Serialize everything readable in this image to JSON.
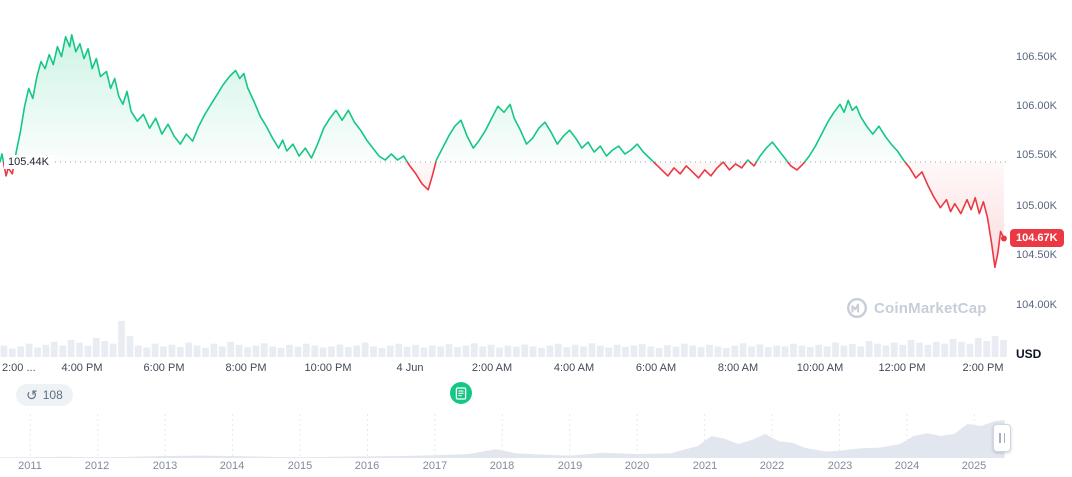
{
  "price_chart": {
    "open_label": "105.44K",
    "last_label": "104.67K"
  },
  "price_axis": {
    "labels": [
      "106.50K",
      "106.00K",
      "105.50K",
      "105.00K",
      "104.50K",
      "104.00K"
    ],
    "currency": "USD"
  },
  "time_axis": {
    "labels": [
      "2:00 ...",
      "4:00 PM",
      "6:00 PM",
      "8:00 PM",
      "10:00 PM",
      "4 Jun",
      "2:00 AM",
      "4:00 AM",
      "6:00 AM",
      "8:00 AM",
      "10:00 AM",
      "12:00 PM",
      "2:00 PM"
    ]
  },
  "toolbar": {
    "annotations_count": "108",
    "history_glyph": "↺"
  },
  "watermark": {
    "text": "CoinMarketCap"
  },
  "timeline": {
    "years": [
      "2011",
      "2012",
      "2013",
      "2014",
      "2015",
      "2016",
      "2017",
      "2018",
      "2019",
      "2020",
      "2021",
      "2022",
      "2023",
      "2024",
      "2025"
    ]
  },
  "chart_data": [
    {
      "type": "area",
      "title": "",
      "x_unit": "hours since 2:00 PM Jun 3",
      "x_range": [
        0,
        24.6
      ],
      "y_range_visible": [
        103.93,
        107.07
      ],
      "baseline_open": 105.44,
      "last_price": 104.67,
      "y_ticks": [
        "106.50K",
        "106.00K",
        "105.50K",
        "105.00K",
        "104.50K",
        "104.00K"
      ],
      "x_ticks": [
        "2:00 ...",
        "4:00 PM",
        "6:00 PM",
        "8:00 PM",
        "10:00 PM",
        "4 Jun",
        "2:00 AM",
        "4:00 AM",
        "6:00 AM",
        "8:00 AM",
        "10:00 AM",
        "12:00 PM",
        "2:00 PM"
      ],
      "colors": {
        "up": "#16c784",
        "down": "#ea3943",
        "baseline": "#9aa4b5",
        "volume": "#e9ecf2"
      },
      "points": [
        [
          0,
          105.44
        ],
        [
          0.05,
          105.52
        ],
        [
          0.1,
          105.4
        ],
        [
          0.15,
          105.3
        ],
        [
          0.2,
          105.38
        ],
        [
          0.3,
          105.32
        ],
        [
          0.4,
          105.55
        ],
        [
          0.5,
          105.75
        ],
        [
          0.6,
          106.0
        ],
        [
          0.7,
          106.18
        ],
        [
          0.8,
          106.08
        ],
        [
          0.9,
          106.3
        ],
        [
          1.0,
          106.45
        ],
        [
          1.1,
          106.38
        ],
        [
          1.2,
          106.52
        ],
        [
          1.3,
          106.42
        ],
        [
          1.4,
          106.6
        ],
        [
          1.5,
          106.5
        ],
        [
          1.6,
          106.7
        ],
        [
          1.7,
          106.6
        ],
        [
          1.75,
          106.72
        ],
        [
          1.85,
          106.55
        ],
        [
          1.95,
          106.63
        ],
        [
          2.05,
          106.48
        ],
        [
          2.15,
          106.58
        ],
        [
          2.25,
          106.38
        ],
        [
          2.35,
          106.48
        ],
        [
          2.45,
          106.3
        ],
        [
          2.6,
          106.35
        ],
        [
          2.7,
          106.18
        ],
        [
          2.8,
          106.28
        ],
        [
          2.9,
          106.1
        ],
        [
          3.0,
          106.02
        ],
        [
          3.1,
          106.15
        ],
        [
          3.2,
          105.95
        ],
        [
          3.35,
          105.85
        ],
        [
          3.5,
          105.92
        ],
        [
          3.65,
          105.78
        ],
        [
          3.8,
          105.88
        ],
        [
          3.95,
          105.72
        ],
        [
          4.1,
          105.82
        ],
        [
          4.25,
          105.7
        ],
        [
          4.4,
          105.62
        ],
        [
          4.55,
          105.72
        ],
        [
          4.7,
          105.65
        ],
        [
          4.85,
          105.8
        ],
        [
          5.0,
          105.92
        ],
        [
          5.15,
          106.02
        ],
        [
          5.3,
          106.12
        ],
        [
          5.45,
          106.22
        ],
        [
          5.6,
          106.3
        ],
        [
          5.75,
          106.36
        ],
        [
          5.85,
          106.28
        ],
        [
          5.95,
          106.33
        ],
        [
          6.05,
          106.18
        ],
        [
          6.2,
          106.05
        ],
        [
          6.35,
          105.9
        ],
        [
          6.5,
          105.8
        ],
        [
          6.65,
          105.68
        ],
        [
          6.8,
          105.58
        ],
        [
          6.9,
          105.66
        ],
        [
          7.0,
          105.55
        ],
        [
          7.15,
          105.62
        ],
        [
          7.3,
          105.5
        ],
        [
          7.45,
          105.58
        ],
        [
          7.6,
          105.48
        ],
        [
          7.75,
          105.62
        ],
        [
          7.9,
          105.78
        ],
        [
          8.05,
          105.88
        ],
        [
          8.2,
          105.96
        ],
        [
          8.35,
          105.86
        ],
        [
          8.5,
          105.96
        ],
        [
          8.65,
          105.84
        ],
        [
          8.8,
          105.76
        ],
        [
          8.95,
          105.66
        ],
        [
          9.1,
          105.58
        ],
        [
          9.25,
          105.5
        ],
        [
          9.4,
          105.46
        ],
        [
          9.55,
          105.52
        ],
        [
          9.7,
          105.46
        ],
        [
          9.85,
          105.5
        ],
        [
          10.0,
          105.4
        ],
        [
          10.15,
          105.32
        ],
        [
          10.3,
          105.22
        ],
        [
          10.45,
          105.16
        ],
        [
          10.55,
          105.3
        ],
        [
          10.65,
          105.46
        ],
        [
          10.8,
          105.58
        ],
        [
          10.95,
          105.7
        ],
        [
          11.1,
          105.8
        ],
        [
          11.25,
          105.86
        ],
        [
          11.4,
          105.7
        ],
        [
          11.55,
          105.58
        ],
        [
          11.7,
          105.66
        ],
        [
          11.85,
          105.76
        ],
        [
          12.0,
          105.88
        ],
        [
          12.15,
          106.0
        ],
        [
          12.3,
          105.94
        ],
        [
          12.45,
          106.02
        ],
        [
          12.55,
          105.88
        ],
        [
          12.7,
          105.76
        ],
        [
          12.85,
          105.62
        ],
        [
          13.0,
          105.68
        ],
        [
          13.15,
          105.78
        ],
        [
          13.3,
          105.84
        ],
        [
          13.45,
          105.74
        ],
        [
          13.6,
          105.62
        ],
        [
          13.75,
          105.7
        ],
        [
          13.9,
          105.76
        ],
        [
          14.05,
          105.68
        ],
        [
          14.2,
          105.58
        ],
        [
          14.35,
          105.64
        ],
        [
          14.5,
          105.54
        ],
        [
          14.65,
          105.6
        ],
        [
          14.8,
          105.5
        ],
        [
          14.95,
          105.56
        ],
        [
          15.1,
          105.6
        ],
        [
          15.25,
          105.52
        ],
        [
          15.4,
          105.56
        ],
        [
          15.55,
          105.62
        ],
        [
          15.7,
          105.54
        ],
        [
          15.85,
          105.48
        ],
        [
          16.0,
          105.42
        ],
        [
          16.15,
          105.36
        ],
        [
          16.3,
          105.3
        ],
        [
          16.45,
          105.38
        ],
        [
          16.6,
          105.32
        ],
        [
          16.75,
          105.4
        ],
        [
          16.9,
          105.34
        ],
        [
          17.05,
          105.28
        ],
        [
          17.2,
          105.36
        ],
        [
          17.35,
          105.3
        ],
        [
          17.5,
          105.38
        ],
        [
          17.65,
          105.44
        ],
        [
          17.8,
          105.36
        ],
        [
          17.95,
          105.42
        ],
        [
          18.1,
          105.38
        ],
        [
          18.25,
          105.46
        ],
        [
          18.4,
          105.4
        ],
        [
          18.55,
          105.5
        ],
        [
          18.7,
          105.58
        ],
        [
          18.85,
          105.64
        ],
        [
          19.0,
          105.56
        ],
        [
          19.15,
          105.48
        ],
        [
          19.3,
          105.4
        ],
        [
          19.45,
          105.36
        ],
        [
          19.6,
          105.42
        ],
        [
          19.75,
          105.5
        ],
        [
          19.9,
          105.6
        ],
        [
          20.05,
          105.72
        ],
        [
          20.2,
          105.84
        ],
        [
          20.35,
          105.94
        ],
        [
          20.5,
          106.02
        ],
        [
          20.6,
          105.94
        ],
        [
          20.7,
          106.06
        ],
        [
          20.8,
          105.96
        ],
        [
          20.9,
          106.0
        ],
        [
          21.0,
          105.9
        ],
        [
          21.15,
          105.8
        ],
        [
          21.3,
          105.72
        ],
        [
          21.45,
          105.8
        ],
        [
          21.6,
          105.7
        ],
        [
          21.75,
          105.62
        ],
        [
          21.9,
          105.55
        ],
        [
          22.05,
          105.46
        ],
        [
          22.2,
          105.38
        ],
        [
          22.35,
          105.28
        ],
        [
          22.5,
          105.34
        ],
        [
          22.65,
          105.2
        ],
        [
          22.8,
          105.08
        ],
        [
          22.95,
          104.98
        ],
        [
          23.1,
          105.06
        ],
        [
          23.2,
          104.94
        ],
        [
          23.3,
          105.02
        ],
        [
          23.45,
          104.92
        ],
        [
          23.6,
          105.06
        ],
        [
          23.7,
          104.96
        ],
        [
          23.8,
          105.08
        ],
        [
          23.9,
          104.92
        ],
        [
          24.0,
          105.04
        ],
        [
          24.1,
          104.88
        ],
        [
          24.2,
          104.62
        ],
        [
          24.28,
          104.38
        ],
        [
          24.35,
          104.52
        ],
        [
          24.42,
          104.74
        ],
        [
          24.5,
          104.67
        ]
      ],
      "volume": [
        0.3,
        0.22,
        0.28,
        0.35,
        0.25,
        0.32,
        0.4,
        0.3,
        0.45,
        0.38,
        0.3,
        0.5,
        0.42,
        0.35,
        0.95,
        0.55,
        0.3,
        0.25,
        0.35,
        0.28,
        0.32,
        0.26,
        0.38,
        0.3,
        0.24,
        0.35,
        0.28,
        0.4,
        0.32,
        0.26,
        0.3,
        0.36,
        0.28,
        0.24,
        0.32,
        0.27,
        0.35,
        0.3,
        0.25,
        0.28,
        0.33,
        0.26,
        0.3,
        0.38,
        0.28,
        0.24,
        0.3,
        0.35,
        0.27,
        0.32,
        0.25,
        0.3,
        0.28,
        0.34,
        0.26,
        0.3,
        0.36,
        0.28,
        0.32,
        0.25,
        0.3,
        0.27,
        0.33,
        0.28,
        0.24,
        0.3,
        0.35,
        0.26,
        0.32,
        0.28,
        0.36,
        0.3,
        0.25,
        0.32,
        0.27,
        0.3,
        0.34,
        0.28,
        0.24,
        0.31,
        0.27,
        0.35,
        0.3,
        0.26,
        0.32,
        0.28,
        0.24,
        0.3,
        0.36,
        0.28,
        0.33,
        0.26,
        0.3,
        0.28,
        0.35,
        0.3,
        0.26,
        0.32,
        0.28,
        0.38,
        0.3,
        0.34,
        0.28,
        0.42,
        0.35,
        0.3,
        0.38,
        0.32,
        0.45,
        0.38,
        0.32,
        0.4,
        0.35,
        0.48,
        0.4,
        0.35,
        0.5,
        0.42,
        0.55,
        0.45
      ]
    },
    {
      "type": "area",
      "title": "",
      "x_range": [
        2010.55,
        2025.5
      ],
      "year_ticks": [
        2011,
        2012,
        2013,
        2014,
        2015,
        2016,
        2017,
        2018,
        2019,
        2020,
        2021,
        2022,
        2023,
        2024,
        2025
      ],
      "color": "#e2e6ee",
      "points": [
        [
          2010.55,
          0.02
        ],
        [
          2011.0,
          0.02
        ],
        [
          2011.5,
          0.03
        ],
        [
          2012.0,
          0.02
        ],
        [
          2012.5,
          0.03
        ],
        [
          2013.0,
          0.05
        ],
        [
          2013.5,
          0.06
        ],
        [
          2014.0,
          0.05
        ],
        [
          2014.5,
          0.03
        ],
        [
          2015.0,
          0.02
        ],
        [
          2015.5,
          0.03
        ],
        [
          2016.0,
          0.04
        ],
        [
          2016.5,
          0.05
        ],
        [
          2017.0,
          0.07
        ],
        [
          2017.5,
          0.1
        ],
        [
          2017.9,
          0.22
        ],
        [
          2018.2,
          0.12
        ],
        [
          2018.5,
          0.09
        ],
        [
          2019.0,
          0.06
        ],
        [
          2019.5,
          0.13
        ],
        [
          2020.0,
          0.1
        ],
        [
          2020.5,
          0.12
        ],
        [
          2020.9,
          0.3
        ],
        [
          2021.1,
          0.55
        ],
        [
          2021.3,
          0.48
        ],
        [
          2021.5,
          0.35
        ],
        [
          2021.7,
          0.45
        ],
        [
          2021.9,
          0.6
        ],
        [
          2022.1,
          0.42
        ],
        [
          2022.3,
          0.38
        ],
        [
          2022.5,
          0.25
        ],
        [
          2022.8,
          0.16
        ],
        [
          2023.0,
          0.18
        ],
        [
          2023.3,
          0.24
        ],
        [
          2023.6,
          0.26
        ],
        [
          2023.9,
          0.35
        ],
        [
          2024.1,
          0.55
        ],
        [
          2024.3,
          0.62
        ],
        [
          2024.5,
          0.55
        ],
        [
          2024.7,
          0.6
        ],
        [
          2024.9,
          0.85
        ],
        [
          2025.1,
          0.8
        ],
        [
          2025.3,
          0.92
        ],
        [
          2025.45,
          0.95
        ]
      ]
    }
  ]
}
